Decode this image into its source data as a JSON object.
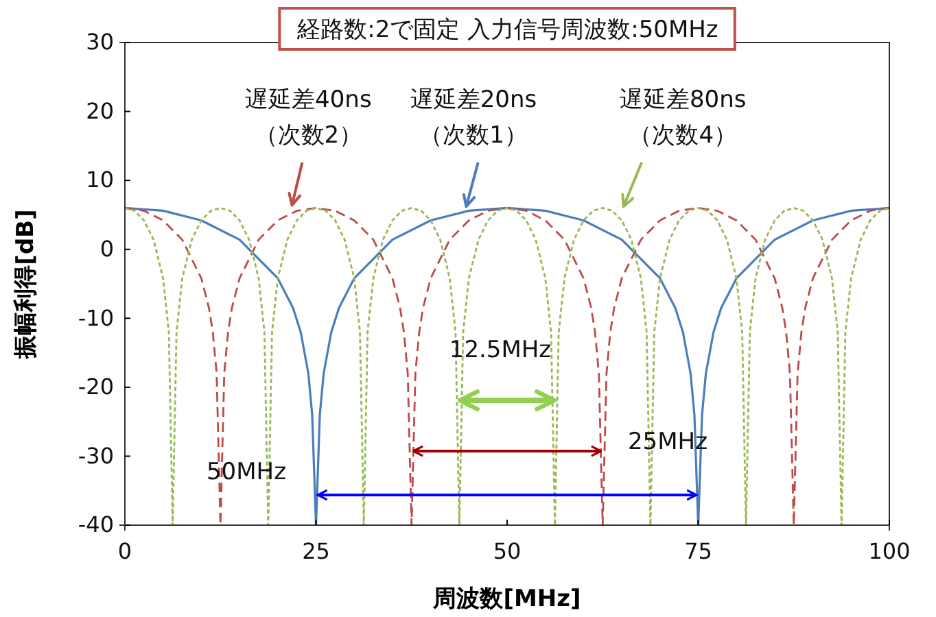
{
  "chart_data": {
    "type": "line",
    "title": "経路数:2で固定  入力信号周波数:50MHz",
    "xlabel": "周波数[MHz]",
    "ylabel": "振幅利得[dB]",
    "xlim": [
      0,
      100
    ],
    "xticks": [
      0,
      25,
      50,
      75,
      100
    ],
    "ylim": [
      -40,
      30
    ],
    "yticks": [
      -40,
      -30,
      -20,
      -10,
      0,
      10,
      20,
      30
    ],
    "series": [
      {
        "name": "遅延差20ns（次数1）",
        "color": "#4a7ebb",
        "line_style": "solid",
        "x": [
          0,
          5,
          10,
          15,
          20,
          22,
          23,
          24,
          24.5,
          25,
          25.5,
          26,
          27,
          28,
          30,
          35,
          40,
          45,
          50,
          55,
          60,
          65,
          70,
          72,
          73,
          74,
          74.5,
          75,
          75.5,
          76,
          77,
          78,
          80,
          85,
          90,
          95,
          100
        ],
        "values": [
          6.0,
          5.6,
          4.2,
          1.4,
          -4.2,
          -8.5,
          -12,
          -18,
          -24,
          -40,
          -24,
          -18,
          -12,
          -8.5,
          -4.2,
          1.4,
          4.2,
          5.6,
          6.0,
          5.6,
          4.2,
          1.4,
          -4.2,
          -8.5,
          -12,
          -18,
          -24,
          -40,
          -24,
          -18,
          -12,
          -8.5,
          -4.2,
          1.4,
          4.2,
          5.6,
          6.0
        ]
      },
      {
        "name": "遅延差40ns（次数2）",
        "color": "#be4b48",
        "line_style": "dashed",
        "x": [
          0,
          2.5,
          5,
          7.5,
          10,
          11,
          11.5,
          12,
          12.5,
          13,
          13.5,
          14,
          15,
          17.5,
          20,
          22.5,
          25,
          27.5,
          30,
          32.5,
          35,
          36,
          36.5,
          37,
          37.5,
          38,
          38.5,
          39,
          40,
          42.5,
          45,
          47.5,
          50,
          52.5,
          55,
          57.5,
          60,
          61,
          61.5,
          62,
          62.5,
          63,
          63.5,
          64,
          65,
          67.5,
          70,
          72.5,
          75,
          77.5,
          80,
          82.5,
          85,
          86,
          86.5,
          87,
          87.5,
          88,
          88.5,
          89,
          90,
          92.5,
          95,
          97.5,
          100
        ],
        "values": [
          6.0,
          5.6,
          4.2,
          1.4,
          -4.2,
          -8.5,
          -12,
          -18,
          -40,
          -18,
          -12,
          -8.5,
          -4.2,
          1.4,
          4.2,
          5.6,
          6.0,
          5.6,
          4.2,
          1.4,
          -4.2,
          -8.5,
          -12,
          -18,
          -40,
          -18,
          -12,
          -8.5,
          -4.2,
          1.4,
          4.2,
          5.6,
          6.0,
          5.6,
          4.2,
          1.4,
          -4.2,
          -8.5,
          -12,
          -18,
          -40,
          -18,
          -12,
          -8.5,
          -4.2,
          1.4,
          4.2,
          5.6,
          6.0,
          5.6,
          4.2,
          1.4,
          -4.2,
          -8.5,
          -12,
          -18,
          -40,
          -18,
          -12,
          -8.5,
          -4.2,
          1.4,
          4.2,
          5.6,
          6.0
        ]
      },
      {
        "name": "遅延差80ns（次数4）",
        "color": "#98b954",
        "line_style": "dotted",
        "x": [
          0,
          1.25,
          2.5,
          3.75,
          5,
          5.75,
          6.25,
          6.75,
          7.5,
          8.75,
          10,
          11.25,
          12.5,
          13.75,
          15,
          16.25,
          17.5,
          18.25,
          18.75,
          19.25,
          20,
          21.25,
          22.5,
          23.75,
          25,
          26.25,
          27.5,
          28.75,
          30,
          30.75,
          31.25,
          31.75,
          32.5,
          33.75,
          35,
          36.25,
          37.5,
          38.75,
          40,
          41.25,
          42.5,
          43.25,
          43.75,
          44.25,
          45,
          46.25,
          47.5,
          48.75,
          50,
          51.25,
          52.5,
          53.75,
          55,
          55.75,
          56.25,
          56.75,
          57.5,
          58.75,
          60,
          61.25,
          62.5,
          63.75,
          65,
          66.25,
          67.5,
          68.25,
          68.75,
          69.25,
          70,
          71.25,
          72.5,
          73.75,
          75,
          76.25,
          77.5,
          78.75,
          80,
          80.75,
          81.25,
          81.75,
          82.5,
          83.75,
          85,
          86.25,
          87.5,
          88.75,
          90,
          91.25,
          92.5,
          93.25,
          93.75,
          94.25,
          95,
          96.25,
          97.5,
          98.75,
          100
        ],
        "values": [
          6.0,
          5.6,
          4.2,
          1.4,
          -4.2,
          -12,
          -40,
          -12,
          -4.2,
          1.4,
          4.2,
          5.6,
          6.0,
          5.6,
          4.2,
          1.4,
          -4.2,
          -12,
          -40,
          -12,
          -4.2,
          1.4,
          4.2,
          5.6,
          6.0,
          5.6,
          4.2,
          1.4,
          -4.2,
          -12,
          -40,
          -12,
          -4.2,
          1.4,
          4.2,
          5.6,
          6.0,
          5.6,
          4.2,
          1.4,
          -4.2,
          -12,
          -40,
          -12,
          -4.2,
          1.4,
          4.2,
          5.6,
          6.0,
          5.6,
          4.2,
          1.4,
          -4.2,
          -12,
          -40,
          -12,
          -4.2,
          1.4,
          4.2,
          5.6,
          6.0,
          5.6,
          4.2,
          1.4,
          -4.2,
          -12,
          -40,
          -12,
          -4.2,
          1.4,
          4.2,
          5.6,
          6.0,
          5.6,
          4.2,
          1.4,
          -4.2,
          -12,
          -40,
          -12,
          -4.2,
          1.4,
          4.2,
          5.6,
          6.0,
          5.6,
          4.2,
          1.4,
          -4.2,
          -12,
          -40,
          -12,
          -4.2,
          1.4,
          4.2,
          5.6,
          6.0
        ]
      }
    ],
    "annotations": [
      "50MHz",
      "25MHz",
      "12.5MHz"
    ]
  }
}
